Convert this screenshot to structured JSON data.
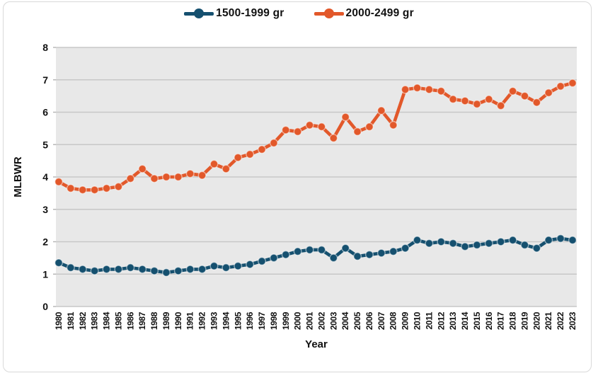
{
  "window": {
    "background": "#ffffff",
    "border_color": "#d9d9d9"
  },
  "legend": {
    "position": "top-center",
    "items": [
      {
        "label": "1500-1999 gr",
        "color": "#15506f"
      },
      {
        "label": "2000-2499 gr",
        "color": "#e2582a"
      }
    ]
  },
  "chart_data": {
    "type": "line",
    "title": "",
    "xlabel": "Year",
    "ylabel": "MLBWR",
    "ylim": [
      0,
      8
    ],
    "yticks": [
      0,
      1,
      2,
      3,
      4,
      5,
      6,
      7,
      8
    ],
    "grid": true,
    "legend_position": "top-center",
    "plot_background": "#e8e8e8",
    "gridline_color": "#c7c7c7",
    "tick_color": "#b3b3b3",
    "text_color": "#111111",
    "marker_style": "circle",
    "categories": [
      "1980",
      "1981",
      "1982",
      "1983",
      "1984",
      "1985",
      "1986",
      "1987",
      "1988",
      "1989",
      "1990",
      "1991",
      "1992",
      "1993",
      "1994",
      "1995",
      "1996",
      "1997",
      "1998",
      "1999",
      "2000",
      "2001",
      "2002",
      "2003",
      "2004",
      "2005",
      "2006",
      "2007",
      "2008",
      "2009",
      "2010",
      "2011",
      "2012",
      "2013",
      "2014",
      "2015",
      "2016",
      "2017",
      "2018",
      "2019",
      "2020",
      "2021",
      "2022",
      "2023"
    ],
    "series": [
      {
        "name": "1500-1999 gr",
        "color": "#15506f",
        "values": [
          1.35,
          1.2,
          1.15,
          1.1,
          1.15,
          1.15,
          1.2,
          1.15,
          1.1,
          1.05,
          1.1,
          1.15,
          1.15,
          1.25,
          1.2,
          1.25,
          1.3,
          1.4,
          1.5,
          1.6,
          1.7,
          1.75,
          1.75,
          1.5,
          1.8,
          1.55,
          1.6,
          1.65,
          1.7,
          1.8,
          2.05,
          1.95,
          2.0,
          1.95,
          1.85,
          1.9,
          1.95,
          2.0,
          2.05,
          1.9,
          1.8,
          2.05,
          2.1,
          2.05
        ]
      },
      {
        "name": "2000-2499 gr",
        "color": "#e2582a",
        "values": [
          3.85,
          3.65,
          3.6,
          3.6,
          3.65,
          3.7,
          3.95,
          4.25,
          3.95,
          4.0,
          4.0,
          4.1,
          4.05,
          4.4,
          4.25,
          4.6,
          4.7,
          4.85,
          5.05,
          5.45,
          5.4,
          5.6,
          5.55,
          5.2,
          5.85,
          5.4,
          5.55,
          6.05,
          5.6,
          6.7,
          6.75,
          6.7,
          6.65,
          6.4,
          6.35,
          6.25,
          6.4,
          6.2,
          6.65,
          6.5,
          6.3,
          6.6,
          6.8,
          6.9
        ]
      }
    ]
  }
}
